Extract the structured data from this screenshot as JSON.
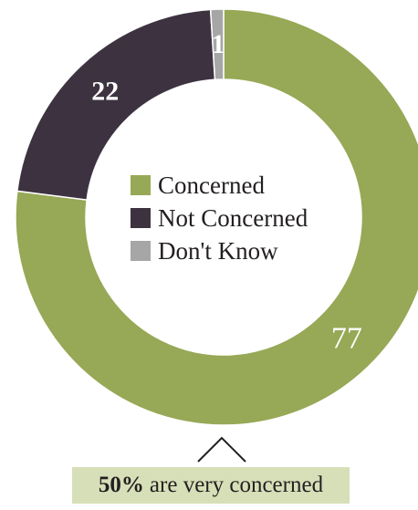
{
  "chart_data": {
    "type": "pie",
    "variant": "donut",
    "categories": [
      "Concerned",
      "Not Concerned",
      "Don't Know"
    ],
    "values": [
      77,
      22,
      1
    ],
    "colors": [
      "#97a856",
      "#3d3340",
      "#a6a6a6"
    ],
    "data_label_colors": [
      "#ffffff",
      "#ffffff",
      "#ffffff"
    ],
    "legend_position": "center"
  },
  "legend": {
    "items": [
      {
        "label": "Concerned",
        "color": "#97a856"
      },
      {
        "label": "Not Concerned",
        "color": "#3d3340"
      },
      {
        "label": "Don't Know",
        "color": "#a6a6a6"
      }
    ]
  },
  "callout": {
    "percent": "50%",
    "text": "are very concerned",
    "background": "#d7dfb8"
  }
}
